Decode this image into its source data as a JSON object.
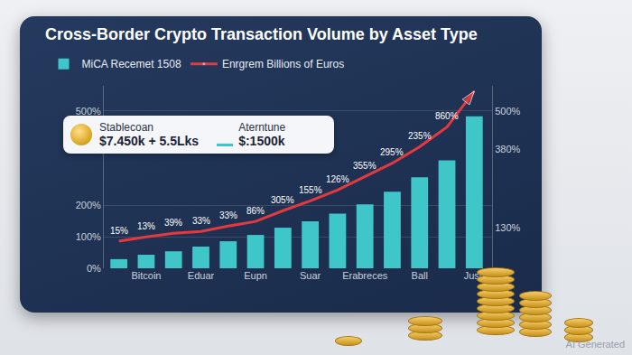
{
  "chart_data": {
    "type": "bar",
    "title": "Cross-Border Crypto Transaction Volume by Asset Type",
    "categories": [
      null,
      "Bitcoin",
      null,
      "Eduar",
      null,
      "Eupn",
      null,
      "Suar",
      null,
      "Erabreces",
      null,
      "Ball",
      null,
      "Jush"
    ],
    "series": [
      {
        "name": "MiCA Recemet 1508",
        "type": "bar",
        "color": "#3fc6c8",
        "values": [
          29,
          43,
          54,
          69,
          86,
          106,
          129,
          149,
          174,
          203,
          243,
          289,
          343,
          483
        ]
      },
      {
        "name": "Enrgrem Billions of Euros",
        "type": "line",
        "color": "#e23a3f",
        "marker": "arrow",
        "values": [
          86,
          100,
          111,
          117,
          134,
          149,
          183,
          214,
          249,
          291,
          334,
          386,
          449,
          563
        ]
      }
    ],
    "annotations": [
      "15%",
      "13%",
      "39%",
      "33%",
      "33%",
      "86%",
      "305%",
      "155%",
      "126%",
      "355%",
      "295%",
      "235%",
      "860%"
    ],
    "ylim": [
      0,
      580
    ],
    "yticks": [
      {
        "value": 0,
        "label": "0%"
      },
      {
        "value": 100,
        "label": "100%"
      },
      {
        "value": 200,
        "label": "200%"
      },
      {
        "value": 500,
        "label": "500%"
      }
    ],
    "y2lim": [
      0,
      580
    ],
    "y2ticks": [
      {
        "value": 130,
        "label": "130%"
      },
      {
        "value": 380,
        "label": "380%"
      },
      {
        "value": 500,
        "label": "500%"
      }
    ],
    "grid": true,
    "legend": "top-left",
    "callout": {
      "items": [
        {
          "label": "Stablecoan",
          "value": "$7.450k + 5.5Lks"
        },
        {
          "label": "Aterntune",
          "value": "$:1500k"
        }
      ]
    },
    "watermark": "AI Generated"
  }
}
